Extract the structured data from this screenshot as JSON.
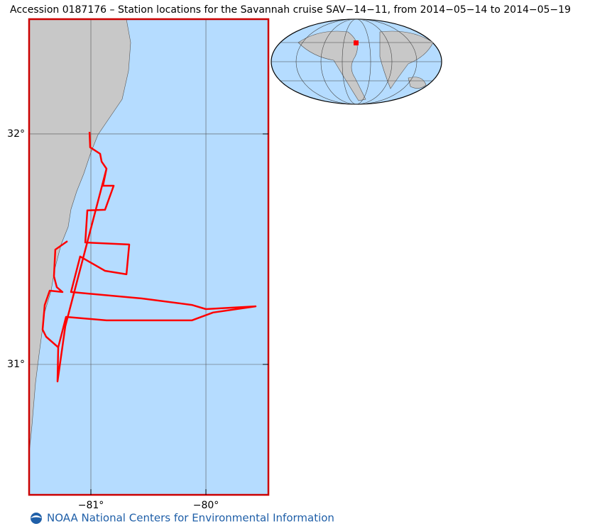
{
  "chart_data": {
    "type": "map",
    "title": "Accession 0187176 – Station locations for the Savannah cruise SAV−14−11, from 2014−05−14 to 2014−05−19",
    "footer": "NOAA National Centers for Environmental Information",
    "xlim": [
      -81.537,
      -79.457
    ],
    "ylim": [
      30.434,
      32.498
    ],
    "xticks": [
      {
        "value": -81,
        "label": "−81°"
      },
      {
        "value": -80,
        "label": "−80°"
      }
    ],
    "yticks": [
      {
        "value": 31,
        "label": "31°"
      },
      {
        "value": 32,
        "label": "32°"
      }
    ],
    "grid": true,
    "color": "#ff0000",
    "x": [
      -81.012,
      -81.006,
      -80.92,
      -80.907,
      -80.864,
      -80.895,
      -80.802,
      -80.877,
      -81.031,
      -81.049,
      -80.667,
      -80.691,
      -80.877,
      -81.093,
      -81.173,
      -80.556,
      -80.123,
      -80.0,
      -79.568,
      -79.938,
      -80.123,
      -80.864,
      -81.216,
      -81.284,
      -81.29,
      -81.222,
      -80.864,
      null,
      -81.204,
      -81.309,
      -81.321,
      -81.296,
      -81.247,
      -81.358,
      -81.401,
      -81.42,
      -81.389,
      -81.284
    ],
    "values": [
      32.009,
      31.942,
      31.914,
      31.88,
      31.849,
      31.775,
      31.775,
      31.671,
      31.668,
      31.529,
      31.52,
      31.391,
      31.406,
      31.468,
      31.314,
      31.286,
      31.258,
      31.24,
      31.252,
      31.225,
      31.191,
      31.191,
      31.206,
      31.074,
      30.926,
      31.166,
      31.849,
      null,
      31.535,
      31.498,
      31.382,
      31.335,
      31.314,
      31.32,
      31.258,
      31.151,
      31.12,
      31.074
    ]
  }
}
